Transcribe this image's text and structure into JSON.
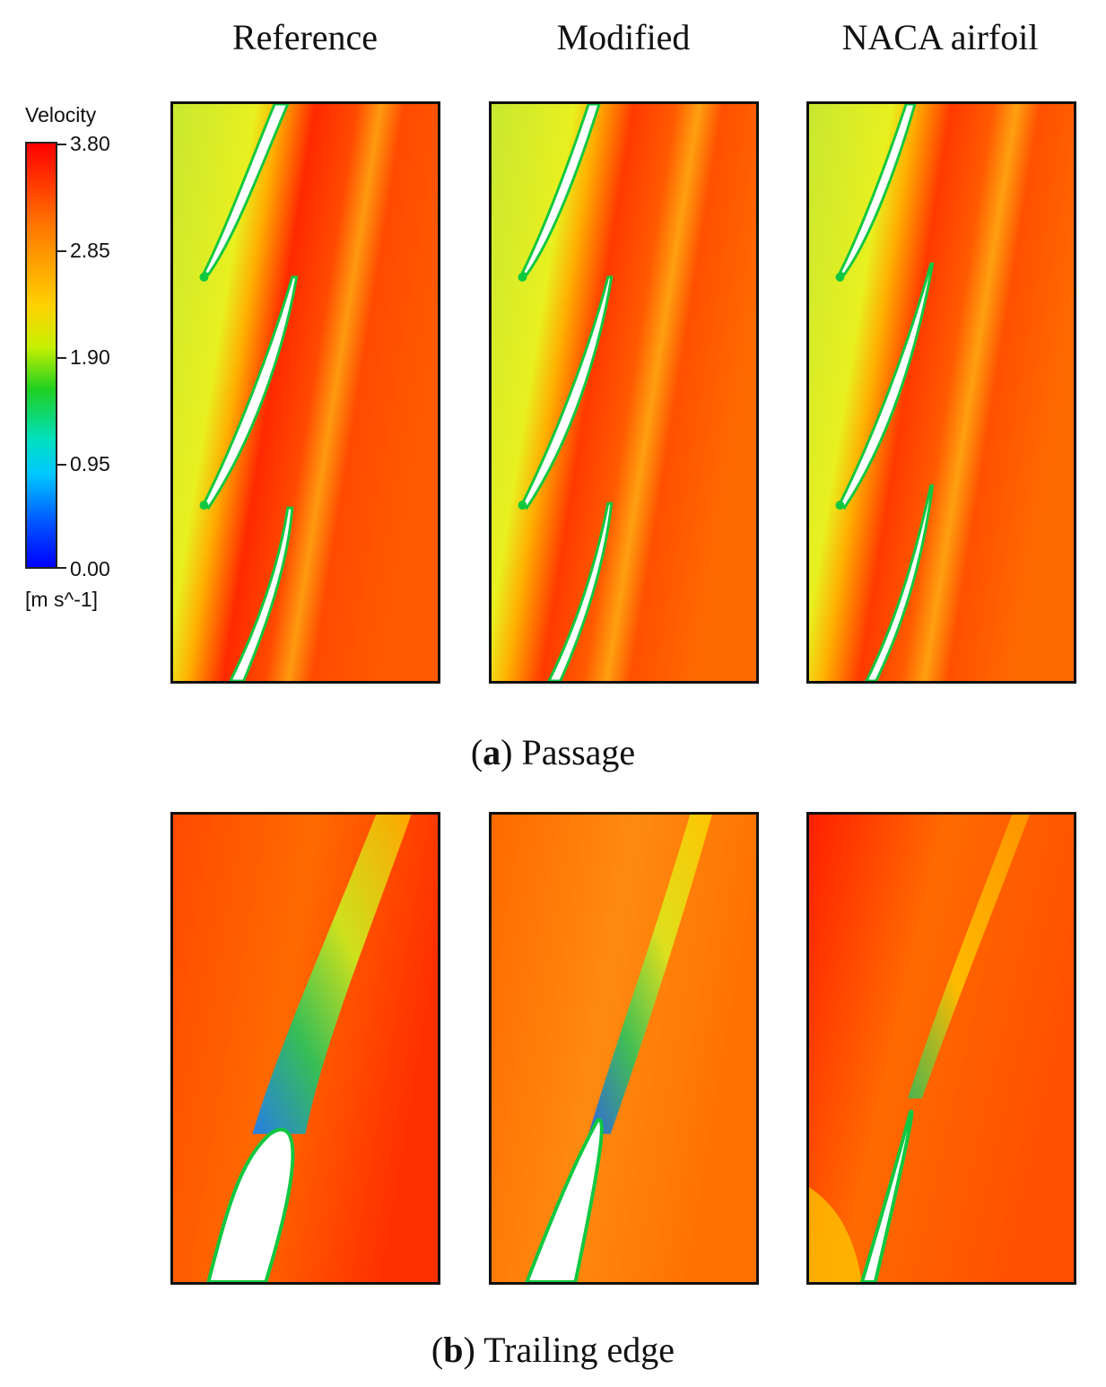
{
  "columns": [
    "Reference",
    "Modified",
    "NACA airfoil"
  ],
  "captions": {
    "a": {
      "letter": "a",
      "text": "Passage"
    },
    "b": {
      "letter": "b",
      "text": "Trailing edge"
    }
  },
  "colorbar": {
    "title": "Velocity",
    "unit": "[m s^-1]",
    "ticks": [
      "3.80",
      "2.85",
      "1.90",
      "0.95",
      "0.00"
    ]
  },
  "colors": {
    "max": "#ff0000",
    "high": "#ff7a00",
    "mid": "#ffd000",
    "midlow": "#20d020",
    "low": "#00c8ff",
    "min": "#0000ff"
  }
}
